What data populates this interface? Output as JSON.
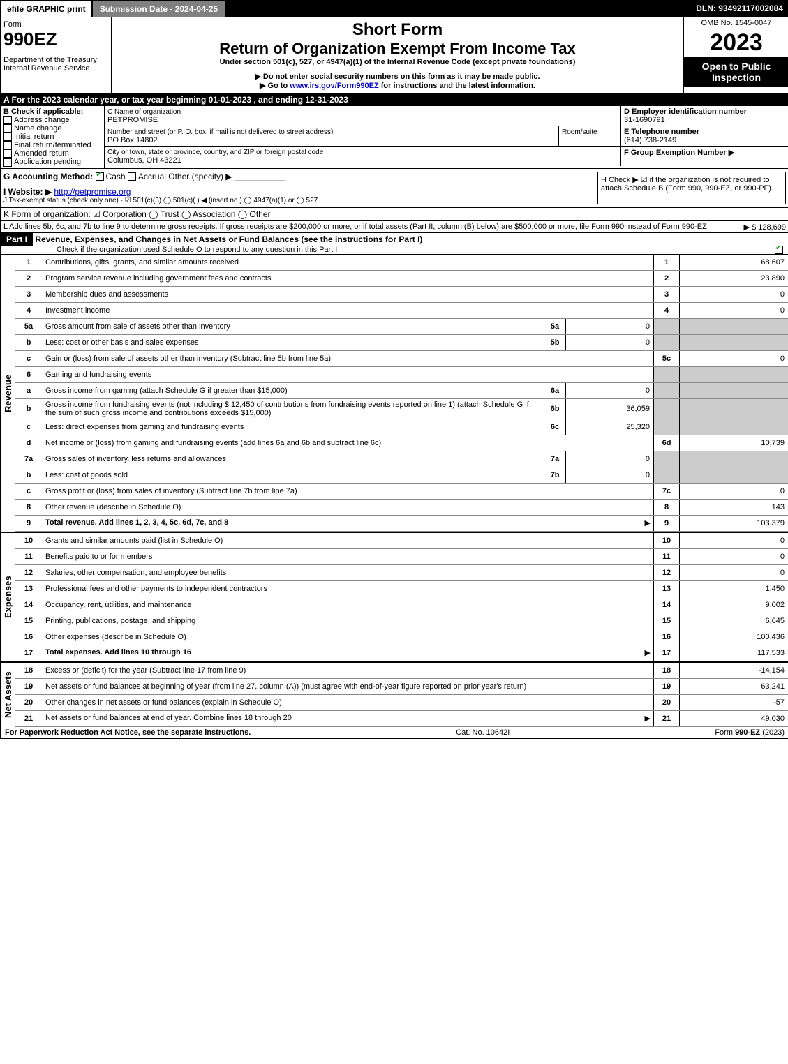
{
  "topbar": {
    "efile": "efile GRAPHIC print",
    "submission": "Submission Date - 2024-04-25",
    "dln": "DLN: 93492117002084"
  },
  "header": {
    "form_label": "Form",
    "form_number": "990EZ",
    "dept": "Department of the Treasury",
    "irs": "Internal Revenue Service",
    "short_form": "Short Form",
    "title": "Return of Organization Exempt From Income Tax",
    "under": "Under section 501(c), 527, or 4947(a)(1) of the Internal Revenue Code (except private foundations)",
    "ssn_note": "▶ Do not enter social security numbers on this form as it may be made public.",
    "goto": "▶ Go to ",
    "goto_link": "www.irs.gov/Form990EZ",
    "goto_tail": " for instructions and the latest information.",
    "omb": "OMB No. 1545-0047",
    "year": "2023",
    "open": "Open to Public Inspection"
  },
  "line_a": "A  For the 2023 calendar year, or tax year beginning 01-01-2023 , and ending 12-31-2023",
  "box_b": {
    "title": "B  Check if applicable:",
    "items": [
      "Address change",
      "Name change",
      "Initial return",
      "Final return/terminated",
      "Amended return",
      "Application pending"
    ]
  },
  "box_c": {
    "name_label": "C Name of organization",
    "name": "PETPROMISE",
    "addr_label": "Number and street (or P. O. box, if mail is not delivered to street address)",
    "addr": "PO Box 14802",
    "room_label": "Room/suite",
    "city_label": "City or town, state or province, country, and ZIP or foreign postal code",
    "city": "Columbus, OH  43221"
  },
  "box_d": {
    "label": "D Employer identification number",
    "value": "31-1690791"
  },
  "box_e": {
    "label": "E Telephone number",
    "value": "(614) 738-2149"
  },
  "box_f": {
    "label": "F Group Exemption Number  ▶"
  },
  "line_g": {
    "label": "G Accounting Method:",
    "cash": "Cash",
    "accrual": "Accrual",
    "other": "Other (specify) ▶"
  },
  "line_h": "H  Check ▶ ☑ if the organization is not required to attach Schedule B (Form 990, 990-EZ, or 990-PF).",
  "line_i": {
    "label": "I Website: ▶",
    "url": "http://petpromise.org"
  },
  "line_j": "J Tax-exempt status (check only one) - ☑ 501(c)(3)  ◯ 501(c)(  ) ◀ (insert no.)  ◯ 4947(a)(1) or  ◯ 527",
  "line_k": "K Form of organization:  ☑ Corporation  ◯ Trust  ◯ Association  ◯ Other",
  "line_l": {
    "text": "L Add lines 5b, 6c, and 7b to line 9 to determine gross receipts. If gross receipts are $200,000 or more, or if total assets (Part II, column (B) below) are $500,000 or more, file Form 990 instead of Form 990-EZ",
    "arrow": "▶ $ 128,699"
  },
  "part1": {
    "header": "Part I",
    "title": "Revenue, Expenses, and Changes in Net Assets or Fund Balances (see the instructions for Part I)",
    "check_note": "Check if the organization used Schedule O to respond to any question in this Part I"
  },
  "sections": {
    "revenue": "Revenue",
    "expenses": "Expenses",
    "netassets": "Net Assets"
  },
  "lines": [
    {
      "n": "1",
      "d": "Contributions, gifts, grants, and similar amounts received",
      "box": "1",
      "v": "68,607"
    },
    {
      "n": "2",
      "d": "Program service revenue including government fees and contracts",
      "box": "2",
      "v": "23,890"
    },
    {
      "n": "3",
      "d": "Membership dues and assessments",
      "box": "3",
      "v": "0"
    },
    {
      "n": "4",
      "d": "Investment income",
      "box": "4",
      "v": "0"
    },
    {
      "n": "5a",
      "d": "Gross amount from sale of assets other than inventory",
      "sub": "5a",
      "sv": "0",
      "shade": true
    },
    {
      "n": "b",
      "d": "Less: cost or other basis and sales expenses",
      "sub": "5b",
      "sv": "0",
      "shade": true
    },
    {
      "n": "c",
      "d": "Gain or (loss) from sale of assets other than inventory (Subtract line 5b from line 5a)",
      "box": "5c",
      "v": "0"
    },
    {
      "n": "6",
      "d": "Gaming and fundraising events",
      "shade": true
    },
    {
      "n": "a",
      "d": "Gross income from gaming (attach Schedule G if greater than $15,000)",
      "sub": "6a",
      "sv": "0",
      "shade": true
    },
    {
      "n": "b",
      "d": "Gross income from fundraising events (not including $  12,450        of contributions from fundraising events reported on line 1) (attach Schedule G if the sum of such gross income and contributions exceeds $15,000)",
      "sub": "6b",
      "sv": "36,059",
      "shade": true
    },
    {
      "n": "c",
      "d": "Less: direct expenses from gaming and fundraising events",
      "sub": "6c",
      "sv": "25,320",
      "shade": true
    },
    {
      "n": "d",
      "d": "Net income or (loss) from gaming and fundraising events (add lines 6a and 6b and subtract line 6c)",
      "box": "6d",
      "v": "10,739"
    },
    {
      "n": "7a",
      "d": "Gross sales of inventory, less returns and allowances",
      "sub": "7a",
      "sv": "0",
      "shade": true
    },
    {
      "n": "b",
      "d": "Less: cost of goods sold",
      "sub": "7b",
      "sv": "0",
      "shade": true
    },
    {
      "n": "c",
      "d": "Gross profit or (loss) from sales of inventory (Subtract line 7b from line 7a)",
      "box": "7c",
      "v": "0"
    },
    {
      "n": "8",
      "d": "Other revenue (describe in Schedule O)",
      "box": "8",
      "v": "143"
    },
    {
      "n": "9",
      "d": "Total revenue. Add lines 1, 2, 3, 4, 5c, 6d, 7c, and 8",
      "box": "9",
      "v": "103,379",
      "bold": true,
      "arrow": true
    }
  ],
  "exp_lines": [
    {
      "n": "10",
      "d": "Grants and similar amounts paid (list in Schedule O)",
      "box": "10",
      "v": "0"
    },
    {
      "n": "11",
      "d": "Benefits paid to or for members",
      "box": "11",
      "v": "0"
    },
    {
      "n": "12",
      "d": "Salaries, other compensation, and employee benefits",
      "box": "12",
      "v": "0"
    },
    {
      "n": "13",
      "d": "Professional fees and other payments to independent contractors",
      "box": "13",
      "v": "1,450"
    },
    {
      "n": "14",
      "d": "Occupancy, rent, utilities, and maintenance",
      "box": "14",
      "v": "9,002"
    },
    {
      "n": "15",
      "d": "Printing, publications, postage, and shipping",
      "box": "15",
      "v": "6,645"
    },
    {
      "n": "16",
      "d": "Other expenses (describe in Schedule O)",
      "box": "16",
      "v": "100,436"
    },
    {
      "n": "17",
      "d": "Total expenses. Add lines 10 through 16",
      "box": "17",
      "v": "117,533",
      "bold": true,
      "arrow": true
    }
  ],
  "na_lines": [
    {
      "n": "18",
      "d": "Excess or (deficit) for the year (Subtract line 17 from line 9)",
      "box": "18",
      "v": "-14,154"
    },
    {
      "n": "19",
      "d": "Net assets or fund balances at beginning of year (from line 27, column (A)) (must agree with end-of-year figure reported on prior year's return)",
      "box": "19",
      "v": "63,241"
    },
    {
      "n": "20",
      "d": "Other changes in net assets or fund balances (explain in Schedule O)",
      "box": "20",
      "v": "-57"
    },
    {
      "n": "21",
      "d": "Net assets or fund balances at end of year. Combine lines 18 through 20",
      "box": "21",
      "v": "49,030",
      "arrow": true
    }
  ],
  "footer": {
    "left": "For Paperwork Reduction Act Notice, see the separate instructions.",
    "center": "Cat. No. 10642I",
    "right": "Form 990-EZ (2023)"
  }
}
